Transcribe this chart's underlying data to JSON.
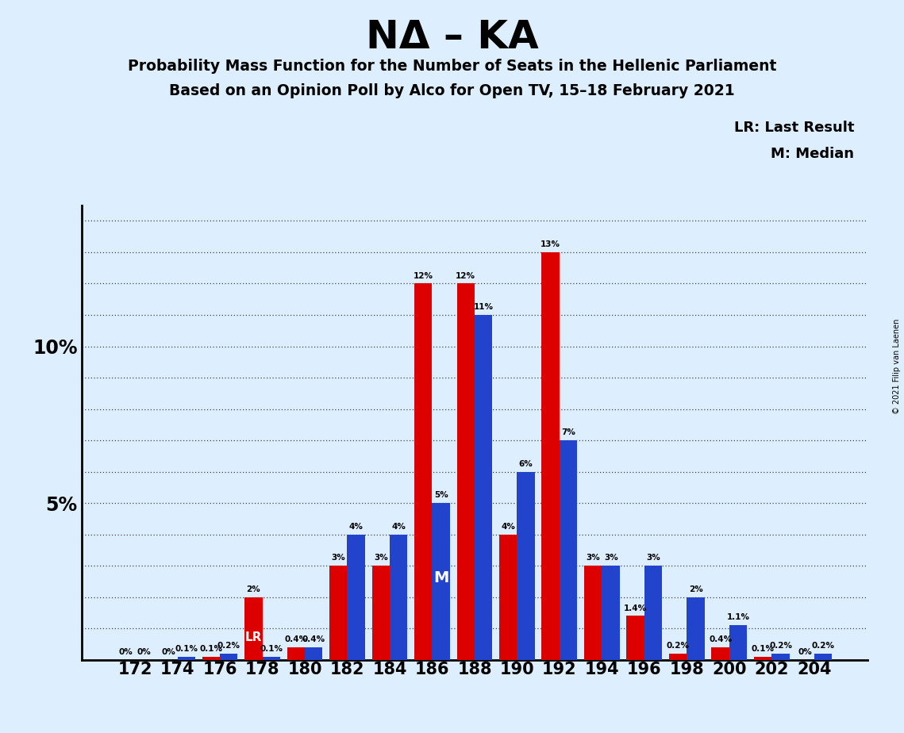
{
  "title": "NΔ – KA",
  "subtitle1": "Probability Mass Function for the Number of Seats in the Hellenic Parliament",
  "subtitle2": "Based on an Opinion Poll by Alco for Open TV, 15–18 February 2021",
  "copyright": "© 2021 Filip van Laenen",
  "legend1": "LR: Last Result",
  "legend2": "M: Median",
  "lr_label": "LR",
  "median_label": "M",
  "bg_color": "#ddeeff",
  "red_color": "#dd0000",
  "blue_color": "#2244cc",
  "seats": [
    172,
    174,
    176,
    178,
    180,
    182,
    184,
    186,
    188,
    190,
    192,
    194,
    196,
    198,
    200,
    202,
    204
  ],
  "red_values": [
    0.0,
    0.0,
    0.1,
    2.0,
    0.4,
    3.0,
    3.0,
    12.0,
    12.0,
    4.0,
    13.0,
    3.0,
    1.4,
    0.2,
    0.4,
    0.1,
    0.0
  ],
  "blue_values": [
    0.0,
    0.1,
    0.2,
    0.1,
    0.4,
    4.0,
    4.0,
    5.0,
    11.0,
    6.0,
    7.0,
    3.0,
    3.0,
    2.0,
    1.1,
    0.2,
    0.2
  ],
  "lr_seat_idx": 3,
  "median_seat_idx": 7,
  "ylim_max": 14.5,
  "bar_width": 0.42,
  "figsize": [
    11.39,
    9.24
  ],
  "dpi": 100,
  "ytick_label_positions": [
    5,
    10
  ]
}
